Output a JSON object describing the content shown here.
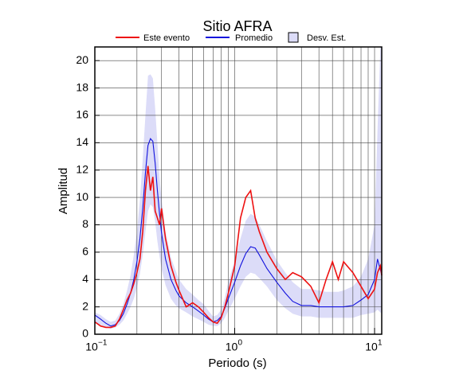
{
  "chart_data": {
    "type": "line",
    "title": "Sitio AFRA",
    "xlabel": "Periodo (s)",
    "ylabel": "Amplitud",
    "xscale": "log",
    "grid": true,
    "xlim": [
      0.1,
      11.25
    ],
    "ylim": [
      0,
      21
    ],
    "xticks": [
      {
        "value": 0.1,
        "label": "10",
        "exponent": "−1"
      },
      {
        "value": 1,
        "label": "10",
        "exponent": "0"
      },
      {
        "value": 10,
        "label": "10",
        "exponent": "1"
      }
    ],
    "xminorticks": [
      0.2,
      0.3,
      0.4,
      0.5,
      0.6,
      0.7,
      0.8,
      0.9,
      2,
      3,
      4,
      5,
      6,
      7,
      8,
      9
    ],
    "yticks": [
      0,
      2,
      4,
      6,
      8,
      10,
      12,
      14,
      16,
      18,
      20
    ],
    "x": [
      0.1,
      0.11,
      0.12,
      0.13,
      0.14,
      0.15,
      0.16,
      0.17,
      0.18,
      0.19,
      0.2,
      0.21,
      0.22,
      0.23,
      0.24,
      0.25,
      0.26,
      0.27,
      0.28,
      0.29,
      0.3,
      0.32,
      0.35,
      0.38,
      0.4,
      0.45,
      0.5,
      0.55,
      0.6,
      0.65,
      0.7,
      0.75,
      0.8,
      0.85,
      0.9,
      1.0,
      1.1,
      1.2,
      1.3,
      1.4,
      1.5,
      1.7,
      2.0,
      2.3,
      2.6,
      3.0,
      3.5,
      4.0,
      4.5,
      5.0,
      5.5,
      6.0,
      7.0,
      8.0,
      9.0,
      10.0,
      10.5,
      11.0,
      11.25
    ],
    "series": [
      {
        "name": "Este evento",
        "color": "#ee1111",
        "values": [
          0.9,
          0.6,
          0.5,
          0.5,
          0.6,
          1.1,
          1.8,
          2.5,
          3.0,
          3.7,
          4.5,
          5.5,
          7.5,
          10.5,
          12.3,
          10.5,
          11.5,
          9.0,
          8.5,
          8.0,
          9.2,
          7.0,
          5.0,
          3.8,
          3.2,
          2.0,
          2.3,
          2.0,
          1.6,
          1.2,
          0.9,
          0.8,
          1.2,
          2.0,
          3.0,
          5.0,
          8.5,
          10.0,
          10.5,
          8.5,
          7.5,
          6.0,
          4.8,
          4.0,
          4.5,
          4.2,
          3.5,
          2.3,
          4.0,
          5.3,
          4.0,
          5.3,
          4.5,
          3.5,
          2.6,
          3.3,
          4.5,
          5.0,
          4.3
        ]
      },
      {
        "name": "Promedio",
        "color": "#1111dd",
        "values": [
          1.4,
          1.1,
          0.8,
          0.6,
          0.7,
          1.0,
          1.5,
          2.2,
          3.0,
          4.0,
          5.3,
          7.0,
          9.2,
          11.8,
          13.8,
          14.3,
          14.1,
          12.5,
          10.5,
          8.8,
          7.4,
          5.5,
          4.0,
          3.2,
          2.8,
          2.3,
          2.0,
          1.7,
          1.4,
          1.1,
          0.9,
          1.0,
          1.3,
          1.9,
          2.6,
          3.8,
          5.0,
          5.9,
          6.4,
          6.3,
          5.8,
          4.8,
          3.8,
          3.0,
          2.4,
          2.1,
          2.1,
          2.0,
          2.0,
          2.0,
          2.0,
          2.0,
          2.1,
          2.5,
          2.9,
          4.0,
          5.5,
          4.7,
          4.4
        ]
      },
      {
        "name": "Desv. Est.",
        "color": "#dcdcf8",
        "lower": [
          0.8,
          0.7,
          0.5,
          0.4,
          0.5,
          0.7,
          1.0,
          1.5,
          2.0,
          2.6,
          3.4,
          4.4,
          5.8,
          7.5,
          9.0,
          9.5,
          9.3,
          8.2,
          6.8,
          5.7,
          4.8,
          3.6,
          2.6,
          2.1,
          1.9,
          1.6,
          1.3,
          1.1,
          0.9,
          0.7,
          0.6,
          0.6,
          0.8,
          1.2,
          1.7,
          2.6,
          3.5,
          4.2,
          4.5,
          4.4,
          4.1,
          3.5,
          2.5,
          1.9,
          1.5,
          1.3,
          1.3,
          1.2,
          1.2,
          1.2,
          1.2,
          1.2,
          1.2,
          1.4,
          1.5,
          1.6,
          1.8,
          1.6,
          1.5
        ],
        "upper": [
          1.6,
          1.4,
          1.1,
          0.9,
          1.0,
          1.5,
          2.2,
          3.2,
          4.3,
          5.8,
          7.5,
          9.8,
          12.8,
          16.0,
          18.9,
          19.0,
          18.7,
          16.5,
          14.0,
          11.5,
          9.8,
          7.5,
          5.6,
          4.6,
          4.0,
          3.3,
          2.9,
          2.5,
          2.2,
          1.7,
          1.3,
          1.4,
          1.8,
          2.7,
          3.8,
          5.4,
          7.0,
          8.3,
          8.8,
          8.6,
          8.0,
          6.8,
          5.4,
          4.5,
          3.8,
          3.3,
          3.3,
          3.2,
          3.1,
          3.1,
          3.1,
          3.2,
          3.5,
          4.2,
          5.5,
          8.0,
          15.0,
          21.0,
          21.0
        ]
      }
    ]
  }
}
